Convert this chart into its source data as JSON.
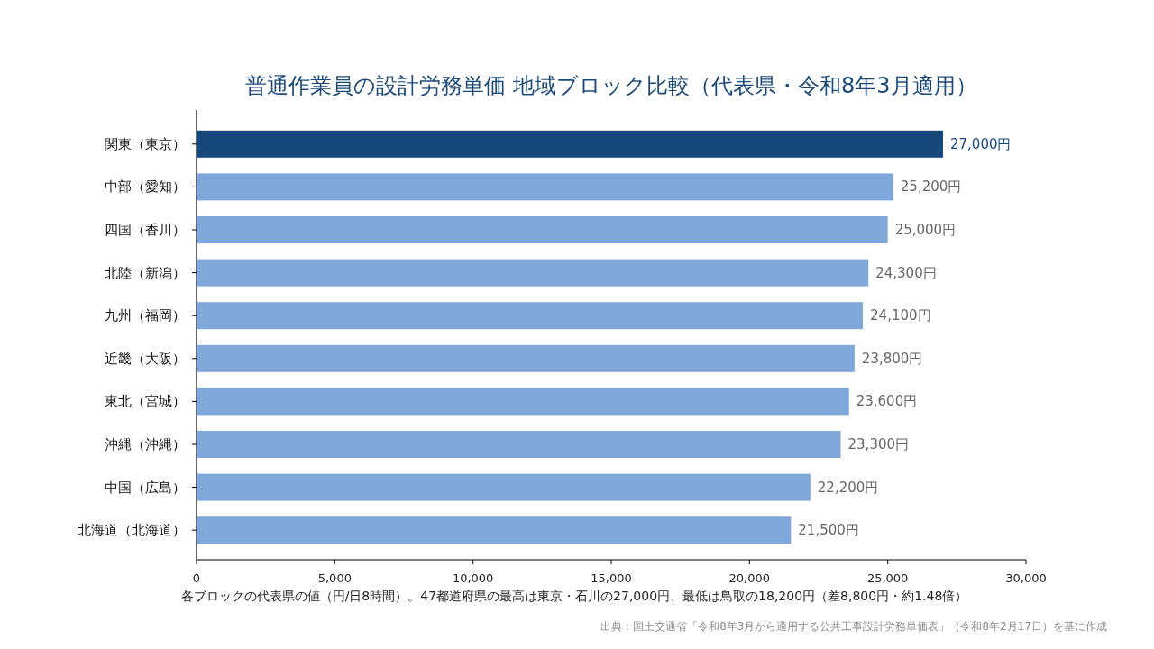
{
  "chart_data": {
    "type": "bar",
    "orientation": "horizontal",
    "title": "普通作業員の設計労務単価 地域ブロック比較（代表県・令和8年3月適用）",
    "xlabel": "各ブロックの代表県の値（円/日8時間）。47都道府県の最高は東京・石川の27,000円、最低は鳥取の18,200円（差8,800円・約1.48倍）",
    "categories": [
      "関東（東京）",
      "中部（愛知）",
      "四国（香川）",
      "北陸（新潟）",
      "九州（福岡）",
      "近畿（大阪）",
      "東北（宮城）",
      "沖縄（沖縄）",
      "中国（広島）",
      "北海道（北海道）"
    ],
    "values": [
      27000,
      25200,
      25000,
      24300,
      24100,
      23800,
      23600,
      23300,
      22200,
      21500
    ],
    "colors": [
      "#17487b",
      "#7fa7d9",
      "#7fa7d9",
      "#7fa7d9",
      "#7fa7d9",
      "#7fa7d9",
      "#7fa7d9",
      "#7fa7d9",
      "#7fa7d9",
      "#7fa7d9"
    ],
    "value_labels": [
      "27,000円",
      "25,200円",
      "25,000円",
      "24,300円",
      "24,100円",
      "23,800円",
      "23,600円",
      "23,300円",
      "22,200円",
      "21,500円"
    ],
    "xlim": [
      0,
      30000
    ],
    "xticks": [
      0,
      {
        "value": 5000,
        "label": "5,000"
      },
      {
        "value": 10000,
        "label": "10,000"
      },
      {
        "value": 15000,
        "label": "15,000"
      },
      {
        "value": 20000,
        "label": "20,000"
      },
      {
        "value": 25000,
        "label": "25,000"
      },
      {
        "value": 30000,
        "label": "30,000"
      }
    ],
    "grid": false,
    "annotations": [
      "出典：国土交通省「令和8年3月から適用する公共工事設計労務単価表」（令和8年2月17日）を基に作成"
    ]
  }
}
